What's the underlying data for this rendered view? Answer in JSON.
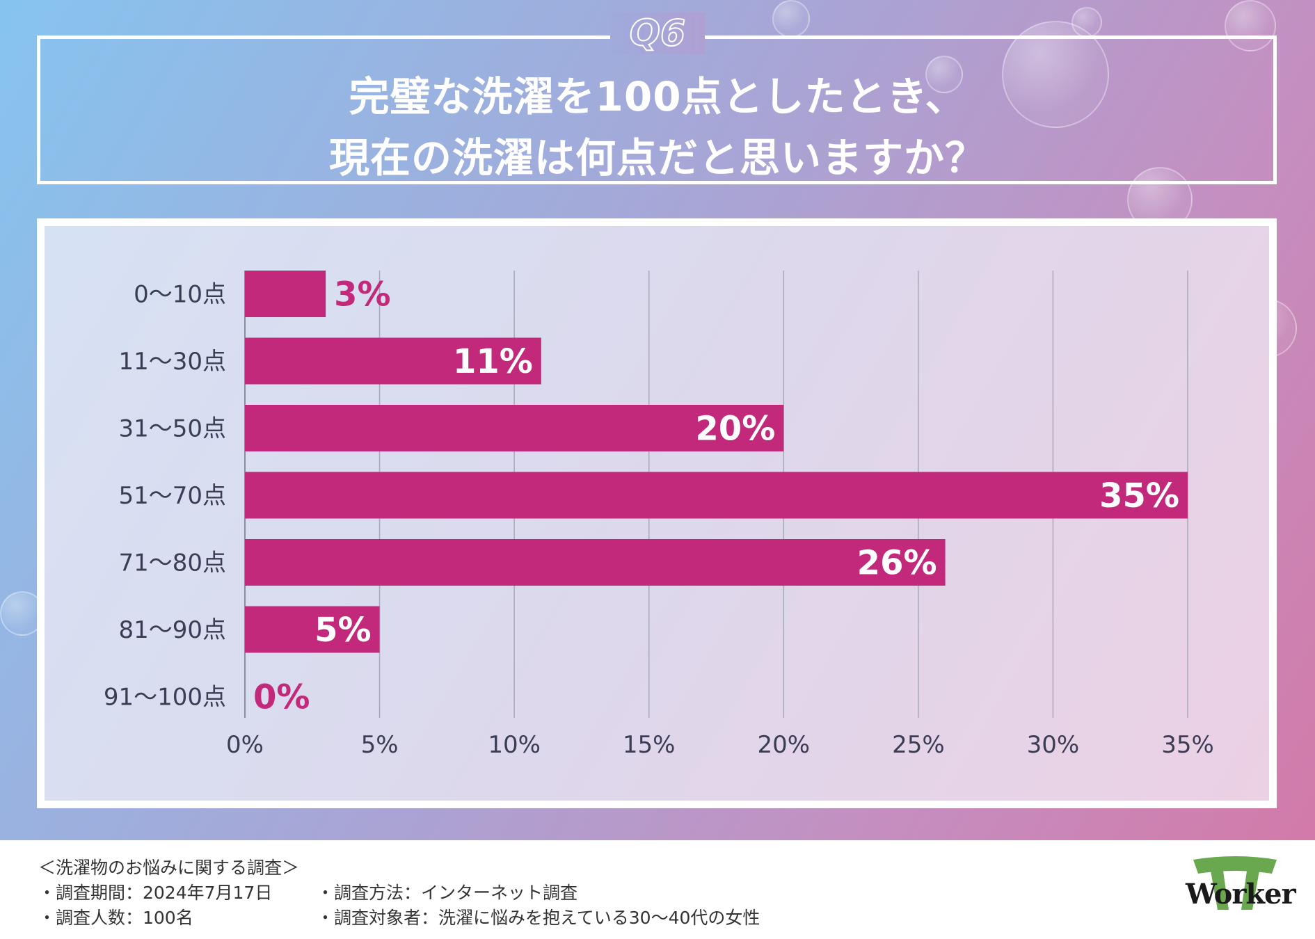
{
  "header": {
    "question_label": "Q6",
    "title_line1": "完璧な洗濯を100点としたとき、",
    "title_line2": "現在の洗濯は何点だと思いますか？"
  },
  "colors": {
    "bar": "#c2297a",
    "label_outside": "#c2297a",
    "label_inside": "#ffffff",
    "grid": "#a7a9bb",
    "axis_text": "#3a3d55"
  },
  "chart_data": {
    "type": "bar",
    "orientation": "horizontal",
    "categories": [
      "0〜10点",
      "11〜30点",
      "31〜50点",
      "51〜70点",
      "71〜80点",
      "81〜90点",
      "91〜100点"
    ],
    "values": [
      3,
      11,
      20,
      35,
      26,
      5,
      0
    ],
    "data_labels": [
      "3%",
      "11%",
      "20%",
      "35%",
      "26%",
      "5%",
      "0%"
    ],
    "xlim": [
      0,
      35
    ],
    "x_ticks": [
      0,
      5,
      10,
      15,
      20,
      25,
      30,
      35
    ],
    "x_tick_labels": [
      "0%",
      "5%",
      "10%",
      "15%",
      "20%",
      "25%",
      "30%",
      "35%"
    ],
    "grid": true,
    "title": "",
    "xlabel": "",
    "ylabel": ""
  },
  "footer": {
    "survey_title": "＜洗濯物のお悩みに関する調査＞",
    "period": "・調査期間：2024年7月17日",
    "count": "・調査人数：100名",
    "method": "・調査方法：インターネット調査",
    "target": "・調査対象者：洗濯に悩みを抱えている30〜40代の女性",
    "logo_text": "Worker"
  }
}
